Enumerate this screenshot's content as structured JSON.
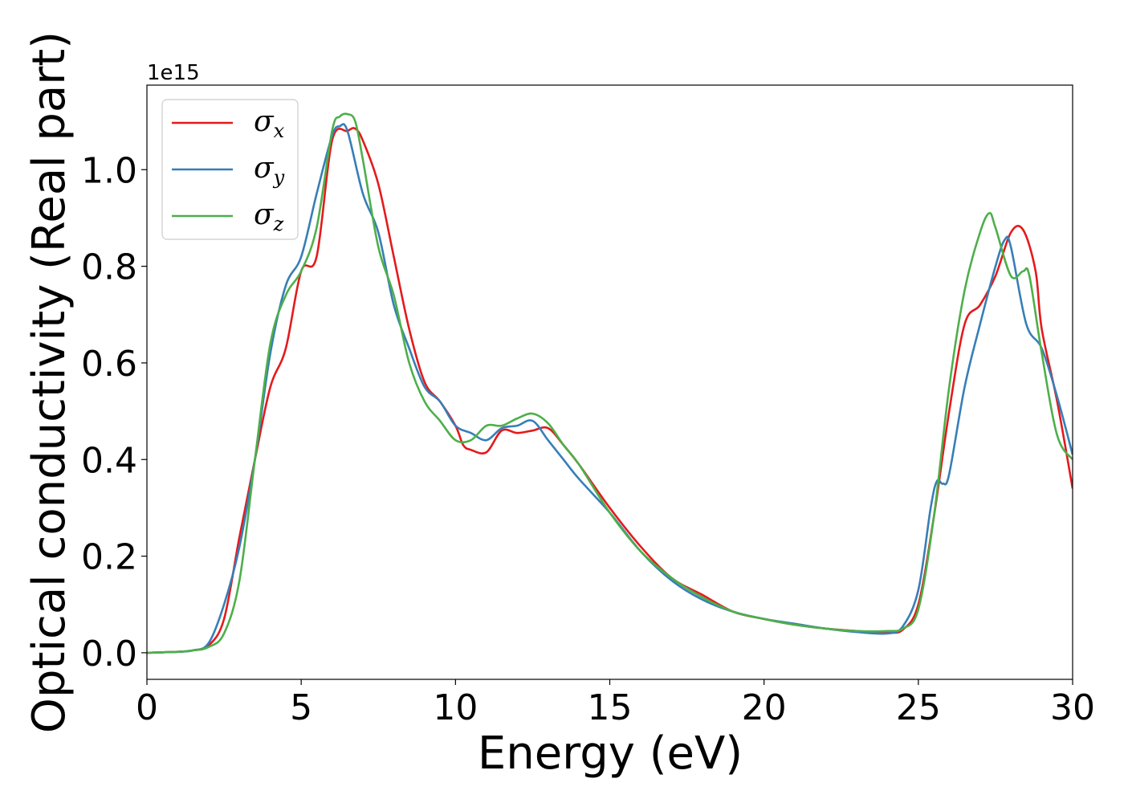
{
  "chart_data": {
    "type": "line",
    "title": "",
    "xlabel": "Energy (eV)",
    "ylabel": "Optical conductivity (Real part)",
    "y_offset_label": "1e15",
    "xlim": [
      0,
      30
    ],
    "ylim": [
      -0.055,
      1.175
    ],
    "xticks": [
      0,
      5,
      10,
      15,
      20,
      25,
      30
    ],
    "xtick_labels": [
      "0",
      "5",
      "10",
      "15",
      "20",
      "25",
      "30"
    ],
    "yticks": [
      0.0,
      0.2,
      0.4,
      0.6,
      0.8,
      1.0
    ],
    "ytick_labels": [
      "0.0",
      "0.2",
      "0.4",
      "0.6",
      "0.8",
      "1.0"
    ],
    "grid": false,
    "legend_position": "top-left",
    "series": [
      {
        "name": "σx",
        "symbol": "σ",
        "subscript": "x",
        "color": "#e41a1c",
        "x": [
          0,
          1,
          1.5,
          2,
          2.5,
          3,
          3.5,
          4,
          4.5,
          5,
          5.5,
          6,
          6.5,
          6.75,
          7,
          7.5,
          8,
          8.5,
          9,
          9.5,
          10,
          10.25,
          10.5,
          11,
          11.5,
          12,
          12.5,
          13,
          13.5,
          14,
          15,
          16,
          17,
          18,
          19,
          20,
          21,
          22,
          23,
          24,
          24.5,
          25,
          25.5,
          26,
          26.5,
          27,
          27.5,
          28,
          28.4,
          28.8,
          29,
          29.5,
          30
        ],
        "y": [
          0,
          0.002,
          0.005,
          0.015,
          0.07,
          0.24,
          0.4,
          0.55,
          0.63,
          0.79,
          0.82,
          1.06,
          1.08,
          1.085,
          1.06,
          0.97,
          0.82,
          0.67,
          0.56,
          0.52,
          0.47,
          0.43,
          0.42,
          0.415,
          0.46,
          0.455,
          0.46,
          0.465,
          0.43,
          0.39,
          0.3,
          0.22,
          0.155,
          0.12,
          0.085,
          0.07,
          0.058,
          0.05,
          0.045,
          0.042,
          0.048,
          0.1,
          0.28,
          0.5,
          0.68,
          0.72,
          0.78,
          0.87,
          0.875,
          0.79,
          0.67,
          0.52,
          0.34
        ]
      },
      {
        "name": "σy",
        "symbol": "σ",
        "subscript": "y",
        "color": "#377eb8",
        "x": [
          0,
          1,
          1.5,
          2,
          2.5,
          3,
          3.5,
          4,
          4.5,
          5,
          5.5,
          6,
          6.25,
          6.5,
          7,
          7.5,
          8,
          8.5,
          9,
          9.5,
          10,
          10.5,
          11,
          11.5,
          12,
          12.5,
          13,
          13.5,
          14,
          15,
          16,
          17,
          18,
          19,
          20,
          21,
          22,
          23,
          24,
          24.5,
          25,
          25.4,
          25.6,
          25.8,
          26,
          26.5,
          27,
          27.5,
          27.8,
          28,
          28.5,
          29,
          29.5,
          30
        ],
        "y": [
          0,
          0.002,
          0.005,
          0.02,
          0.1,
          0.22,
          0.4,
          0.62,
          0.76,
          0.82,
          0.95,
          1.07,
          1.09,
          1.08,
          0.95,
          0.87,
          0.72,
          0.63,
          0.55,
          0.52,
          0.47,
          0.455,
          0.44,
          0.465,
          0.47,
          0.48,
          0.44,
          0.4,
          0.36,
          0.29,
          0.21,
          0.15,
          0.11,
          0.085,
          0.07,
          0.06,
          0.05,
          0.043,
          0.04,
          0.055,
          0.13,
          0.3,
          0.355,
          0.35,
          0.37,
          0.55,
          0.68,
          0.8,
          0.855,
          0.84,
          0.68,
          0.63,
          0.53,
          0.41
        ]
      },
      {
        "name": "σz",
        "symbol": "σ",
        "subscript": "z",
        "color": "#4daf4a",
        "x": [
          0,
          1,
          1.5,
          2,
          2.5,
          3,
          3.5,
          4,
          4.5,
          5,
          5.5,
          6,
          6.25,
          6.5,
          6.75,
          7,
          7.5,
          8,
          8.5,
          9,
          9.5,
          10,
          10.5,
          11,
          11.5,
          12,
          12.5,
          13,
          13.5,
          14,
          15,
          16,
          17,
          18,
          19,
          20,
          21,
          22,
          23,
          24,
          24.5,
          25,
          25.5,
          26,
          26.5,
          27,
          27.3,
          27.5,
          28,
          28.4,
          28.6,
          29,
          29.5,
          30
        ],
        "y": [
          0,
          0.002,
          0.005,
          0.012,
          0.04,
          0.15,
          0.4,
          0.64,
          0.74,
          0.79,
          0.88,
          1.08,
          1.11,
          1.115,
          1.1,
          1.02,
          0.84,
          0.74,
          0.6,
          0.52,
          0.48,
          0.44,
          0.44,
          0.47,
          0.47,
          0.485,
          0.495,
          0.475,
          0.43,
          0.39,
          0.29,
          0.21,
          0.155,
          0.115,
          0.085,
          0.07,
          0.058,
          0.05,
          0.045,
          0.045,
          0.05,
          0.09,
          0.28,
          0.55,
          0.75,
          0.87,
          0.91,
          0.88,
          0.78,
          0.79,
          0.78,
          0.62,
          0.45,
          0.4
        ]
      }
    ]
  }
}
